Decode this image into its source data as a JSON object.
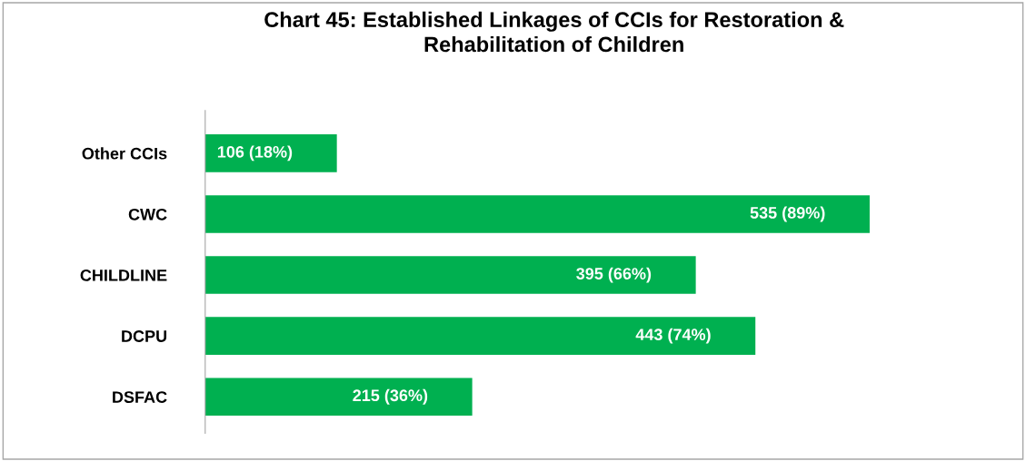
{
  "chart_data": {
    "type": "bar",
    "orientation": "horizontal",
    "title": "Chart 45: Established Linkages of CCIs for Restoration &\nRehabilitation of Children",
    "categories": [
      "Other CCIs",
      "CWC",
      "CHILDLINE",
      "DCPU",
      "DSFAC"
    ],
    "values": [
      106,
      535,
      395,
      443,
      215
    ],
    "value_labels": [
      "106 (18%)",
      "535 (89%)",
      "395 (66%)",
      "443 (74%)",
      "215 (36%)"
    ],
    "color": "#00b050",
    "tick_labels": "y",
    "grid": false,
    "legend": false
  }
}
